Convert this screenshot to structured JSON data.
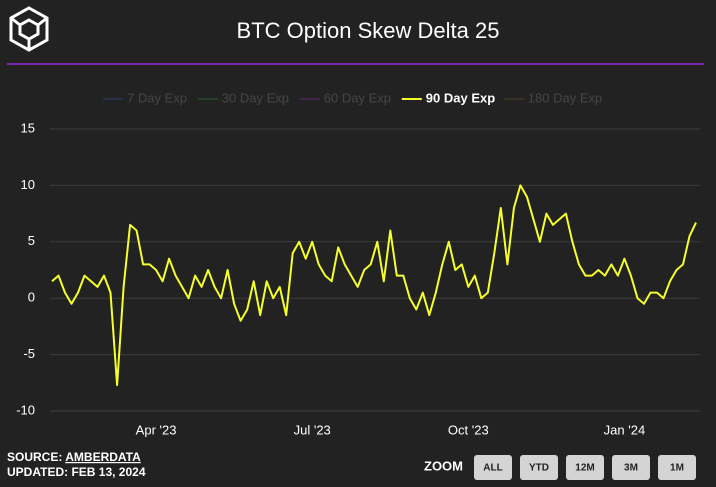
{
  "chart_data": {
    "type": "line",
    "title": "BTC Option Skew Delta 25",
    "categories": [
      null,
      null,
      null,
      null,
      null,
      null,
      null,
      null,
      null,
      null,
      null,
      null,
      null,
      null,
      null,
      null,
      "Apr '23",
      null,
      null,
      null,
      null,
      null,
      null,
      null,
      null,
      null,
      null,
      null,
      null,
      null,
      null,
      null,
      null,
      null,
      null,
      null,
      null,
      null,
      null,
      null,
      "Jul '23",
      null,
      null,
      null,
      null,
      null,
      null,
      null,
      null,
      null,
      null,
      null,
      null,
      null,
      null,
      null,
      null,
      null,
      null,
      null,
      null,
      null,
      null,
      null,
      "Oct '23",
      null,
      null,
      null,
      null,
      null,
      null,
      null,
      null,
      null,
      null,
      null,
      null,
      null,
      null,
      null,
      null,
      null,
      null,
      null,
      null,
      null,
      null,
      null,
      "Jan '24",
      null,
      null,
      null,
      null,
      null,
      null,
      null,
      null,
      null,
      null,
      null
    ],
    "series": [
      {
        "name": "7 Day Exp",
        "color": "#2c4a8c",
        "visible": false
      },
      {
        "name": "30 Day Exp",
        "color": "#2e7d32",
        "visible": false
      },
      {
        "name": "60 Day Exp",
        "color": "#7b2d9c",
        "visible": false
      },
      {
        "name": "90 Day Exp",
        "color": "#f5ff2a",
        "visible": true,
        "values": [
          1.5,
          2,
          0.5,
          -0.5,
          0.5,
          2,
          1.5,
          1,
          2,
          0.5,
          -7.7,
          1,
          6.5,
          6,
          3,
          3,
          2.5,
          1.5,
          3.5,
          2,
          1,
          0,
          2,
          1,
          2.5,
          1,
          0,
          2.5,
          -0.5,
          -2,
          -1,
          1.5,
          -1.5,
          1.5,
          0,
          1,
          -1.5,
          4,
          5,
          3.5,
          5,
          3,
          2,
          1.5,
          4.5,
          3,
          2,
          1,
          2.5,
          3,
          5,
          1.5,
          6,
          2,
          2,
          0,
          -1,
          0.5,
          -1.5,
          0.5,
          3,
          5,
          2.5,
          3,
          1,
          2,
          0,
          0.5,
          4,
          8,
          3,
          8,
          10,
          9,
          7,
          5,
          7.5,
          6.5,
          7,
          7.5,
          5,
          3,
          2,
          2,
          2.5,
          2,
          3,
          2,
          3.5,
          2,
          0,
          -0.5,
          0.5,
          0.5,
          0,
          1.5,
          2.5,
          3,
          5.5,
          6.7
        ]
      },
      {
        "name": "180 Day Exp",
        "color": "#6b5420",
        "visible": false
      }
    ],
    "ylim": [
      -10,
      15
    ],
    "yticks": [
      -10,
      -5,
      0,
      5,
      10,
      15
    ],
    "grid": true
  },
  "footer": {
    "source_label": "SOURCE:",
    "source": "AMBERDATA",
    "updated": "UPDATED: FEB 13, 2024"
  },
  "zoom": {
    "label": "ZOOM",
    "buttons": [
      "ALL",
      "YTD",
      "12M",
      "3M",
      "1M"
    ]
  }
}
